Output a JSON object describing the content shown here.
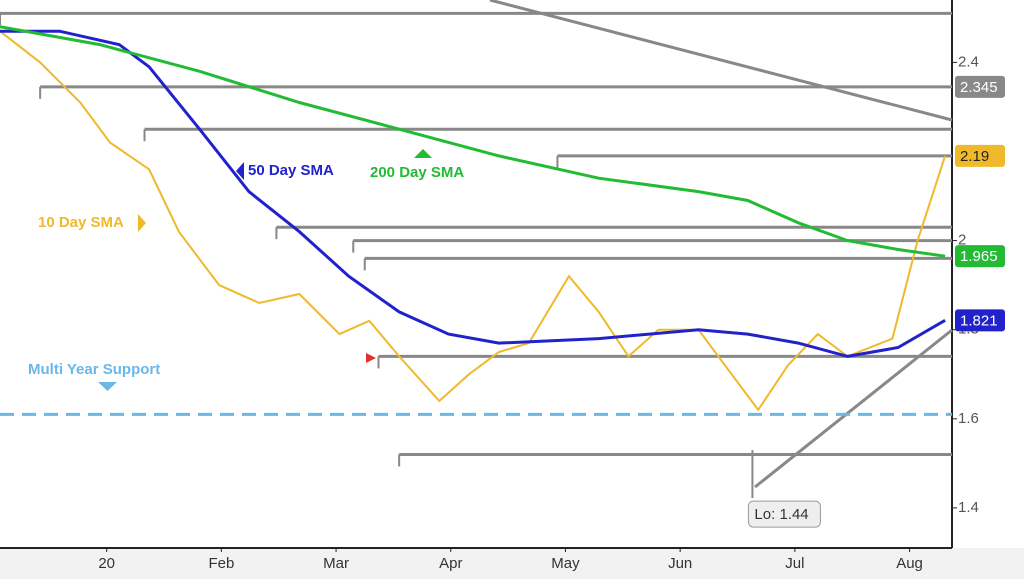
{
  "chart_data": {
    "type": "line",
    "xlim": [
      -0.93,
      7.37
    ],
    "xticks": [
      {
        "value": 0,
        "label": "20"
      },
      {
        "value": 1,
        "label": "Feb"
      },
      {
        "value": 2,
        "label": "Mar"
      },
      {
        "value": 3,
        "label": "Apr"
      },
      {
        "value": 4,
        "label": "May"
      },
      {
        "value": 5,
        "label": "Jun"
      },
      {
        "value": 6,
        "label": "Jul"
      },
      {
        "value": 7,
        "label": "Aug"
      }
    ],
    "ylim": [
      1.31,
      2.54
    ],
    "yticks": [
      1.4,
      1.6,
      1.8,
      2,
      2.4
    ],
    "series": [
      {
        "name": "10 Day SMA",
        "color": "#f0b92a",
        "x": [
          -0.93,
          -0.58,
          -0.23,
          0.03,
          0.37,
          0.63,
          0.98,
          1.33,
          1.68,
          2.03,
          2.29,
          2.55,
          2.9,
          3.16,
          3.42,
          3.68,
          4.03,
          4.29,
          4.55,
          4.81,
          5.16,
          5.42,
          5.68,
          5.94,
          6.2,
          6.46,
          6.85,
          7.07,
          7.31
        ],
        "values": [
          2.47,
          2.4,
          2.31,
          2.22,
          2.16,
          2.02,
          1.9,
          1.86,
          1.88,
          1.79,
          1.82,
          1.74,
          1.64,
          1.7,
          1.75,
          1.77,
          1.92,
          1.84,
          1.74,
          1.8,
          1.8,
          1.71,
          1.62,
          1.72,
          1.79,
          1.74,
          1.78,
          2.0,
          2.19
        ],
        "last_value": 2.19
      },
      {
        "name": "50 Day SMA",
        "color": "#2222cc",
        "x": [
          -0.93,
          -0.41,
          0.11,
          0.37,
          0.81,
          1.24,
          1.68,
          2.11,
          2.55,
          2.98,
          3.42,
          4.29,
          5.16,
          5.59,
          6.03,
          6.46,
          6.9,
          7.31
        ],
        "values": [
          2.47,
          2.47,
          2.44,
          2.39,
          2.25,
          2.11,
          2.02,
          1.92,
          1.84,
          1.79,
          1.77,
          1.78,
          1.8,
          1.79,
          1.77,
          1.74,
          1.76,
          1.821
        ],
        "last_value": 1.821
      },
      {
        "name": "200 Day SMA",
        "color": "#22bb33",
        "x": [
          -0.93,
          -0.06,
          0.81,
          1.68,
          2.55,
          3.42,
          4.29,
          5.16,
          5.59,
          6.03,
          6.46,
          6.9,
          7.31
        ],
        "values": [
          2.48,
          2.44,
          2.38,
          2.31,
          2.25,
          2.19,
          2.14,
          2.11,
          2.09,
          2.04,
          2.0,
          1.98,
          1.965
        ],
        "last_value": 1.965
      }
    ],
    "last_price": 2.345,
    "levels": [
      {
        "value": 2.51,
        "x": -0.93
      },
      {
        "value": 2.345,
        "x": -0.58
      },
      {
        "value": 2.25,
        "x": 0.33
      },
      {
        "value": 2.19,
        "x": 3.93
      },
      {
        "value": 2.03,
        "x": 1.48
      },
      {
        "value": 2.0,
        "x": 2.15
      },
      {
        "value": 1.96,
        "x": 2.25
      },
      {
        "value": 1.74,
        "x": 2.37
      },
      {
        "value": 1.52,
        "x": 2.55
      }
    ],
    "support": {
      "label": "Multi Year Support",
      "value": 1.61
    },
    "low": {
      "label": "Lo: 1.44",
      "value": 1.44,
      "x": 5.63
    }
  }
}
